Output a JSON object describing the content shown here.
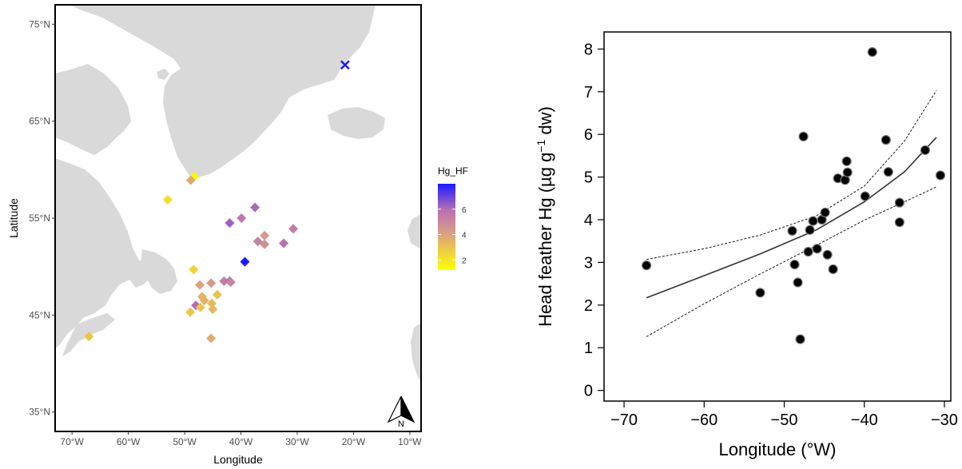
{
  "chart_data": [
    {
      "type": "scatter",
      "subtype": "map",
      "xlabel": "Longitude",
      "ylabel": "Latitude",
      "xlim": [
        -73,
        -8
      ],
      "ylim": [
        33,
        77
      ],
      "x_ticks": [
        -70,
        -60,
        -50,
        -40,
        -30,
        -20,
        -10
      ],
      "x_tick_labels": [
        "70°W",
        "60°W",
        "50°W",
        "40°W",
        "30°W",
        "20°W",
        "10°W"
      ],
      "y_ticks": [
        35,
        45,
        55,
        65,
        75
      ],
      "y_tick_labels": [
        "35°N",
        "45°N",
        "55°N",
        "65°N",
        "75°N"
      ],
      "legend": {
        "title": "Hg_HF",
        "ticks": [
          2,
          4,
          6
        ],
        "range": [
          1.2,
          8.0
        ],
        "colors": [
          "#ffff00",
          "#d89a8a",
          "#1a1aff"
        ],
        "position": "right"
      },
      "land_color": "#d9d9d9",
      "north_arrow_label": "N",
      "colony_marker": {
        "lon": -21.5,
        "lat": 70.8,
        "color": "#1a1aff",
        "shape": "x"
      },
      "points": [
        {
          "lon": -48.3,
          "lat": 59.3,
          "hg": 1.4
        },
        {
          "lon": -48.9,
          "lat": 58.9,
          "hg": 3.8
        },
        {
          "lon": -53.0,
          "lat": 56.9,
          "hg": 2.2
        },
        {
          "lon": -37.5,
          "lat": 56.1,
          "hg": 6.1
        },
        {
          "lon": -42.0,
          "lat": 54.5,
          "hg": 6.3
        },
        {
          "lon": -39.9,
          "lat": 55.0,
          "hg": 5.6
        },
        {
          "lon": -30.7,
          "lat": 53.9,
          "hg": 5.4
        },
        {
          "lon": -37.0,
          "lat": 52.6,
          "hg": 5.2
        },
        {
          "lon": -35.8,
          "lat": 53.2,
          "hg": 4.3
        },
        {
          "lon": -35.8,
          "lat": 52.3,
          "hg": 4.6
        },
        {
          "lon": -32.4,
          "lat": 52.4,
          "hg": 5.8
        },
        {
          "lon": -39.3,
          "lat": 50.5,
          "hg": 8.0
        },
        {
          "lon": -48.4,
          "lat": 49.7,
          "hg": 2.5
        },
        {
          "lon": -43.0,
          "lat": 48.5,
          "hg": 5.3
        },
        {
          "lon": -42.0,
          "lat": 48.5,
          "hg": 5.9
        },
        {
          "lon": -41.8,
          "lat": 48.4,
          "hg": 5.1
        },
        {
          "lon": -45.3,
          "lat": 48.3,
          "hg": 4.3
        },
        {
          "lon": -47.3,
          "lat": 48.1,
          "hg": 4.0
        },
        {
          "lon": -44.2,
          "lat": 47.1,
          "hg": 3.0
        },
        {
          "lon": -46.9,
          "lat": 46.9,
          "hg": 3.4
        },
        {
          "lon": -46.5,
          "lat": 46.5,
          "hg": 3.6
        },
        {
          "lon": -45.2,
          "lat": 46.2,
          "hg": 3.2
        },
        {
          "lon": -48.0,
          "lat": 46.0,
          "hg": 6.0
        },
        {
          "lon": -47.2,
          "lat": 45.8,
          "hg": 3.0
        },
        {
          "lon": -45.0,
          "lat": 45.6,
          "hg": 3.3
        },
        {
          "lon": -49.0,
          "lat": 45.3,
          "hg": 2.9
        },
        {
          "lon": -45.3,
          "lat": 42.6,
          "hg": 3.7
        },
        {
          "lon": -67.0,
          "lat": 42.8,
          "hg": 2.9
        }
      ]
    },
    {
      "type": "scatter",
      "xlabel": "Longitude (°W)",
      "ylabel_parts": [
        "Head feather Hg (µg g",
        "−1",
        " dw)"
      ],
      "xlim": [
        -72.5,
        -29.2
      ],
      "ylim": [
        -0.25,
        8.4
      ],
      "x_ticks": [
        -70,
        -60,
        -50,
        -40,
        -30
      ],
      "y_ticks": [
        0,
        1,
        2,
        3,
        4,
        5,
        6,
        7,
        8
      ],
      "points": [
        {
          "x": -67.2,
          "y": 2.93
        },
        {
          "x": -53.0,
          "y": 2.29
        },
        {
          "x": -49.0,
          "y": 3.74
        },
        {
          "x": -48.7,
          "y": 2.95
        },
        {
          "x": -48.3,
          "y": 2.53
        },
        {
          "x": -48.0,
          "y": 1.2
        },
        {
          "x": -47.6,
          "y": 5.95
        },
        {
          "x": -47.0,
          "y": 3.25
        },
        {
          "x": -46.8,
          "y": 3.76
        },
        {
          "x": -46.4,
          "y": 3.97
        },
        {
          "x": -45.9,
          "y": 3.32
        },
        {
          "x": -45.3,
          "y": 4.0
        },
        {
          "x": -44.9,
          "y": 4.17
        },
        {
          "x": -44.6,
          "y": 3.18
        },
        {
          "x": -43.9,
          "y": 2.84
        },
        {
          "x": -43.3,
          "y": 4.97
        },
        {
          "x": -42.4,
          "y": 4.93
        },
        {
          "x": -42.2,
          "y": 5.37
        },
        {
          "x": -42.1,
          "y": 5.11
        },
        {
          "x": -39.9,
          "y": 4.55
        },
        {
          "x": -39.0,
          "y": 7.93
        },
        {
          "x": -37.3,
          "y": 5.87
        },
        {
          "x": -37.0,
          "y": 5.12
        },
        {
          "x": -35.6,
          "y": 4.4
        },
        {
          "x": -35.6,
          "y": 3.94
        },
        {
          "x": -32.4,
          "y": 5.63
        },
        {
          "x": -30.5,
          "y": 5.04
        }
      ],
      "fit_line": {
        "x": [
          -67.2,
          -60,
          -53,
          -46,
          -40,
          -35,
          -31
        ],
        "y": [
          2.17,
          2.69,
          3.2,
          3.76,
          4.42,
          5.12,
          5.93
        ]
      },
      "ci_upper": {
        "x": [
          -67.2,
          -60,
          -53,
          -46,
          -40,
          -35,
          -31
        ],
        "y": [
          3.07,
          3.32,
          3.64,
          4.09,
          4.79,
          5.84,
          7.03
        ]
      },
      "ci_lower": {
        "x": [
          -67.2,
          -60,
          -53,
          -46,
          -40,
          -35,
          -31
        ],
        "y": [
          1.26,
          2.03,
          2.73,
          3.4,
          3.99,
          4.42,
          4.77
        ]
      }
    }
  ]
}
